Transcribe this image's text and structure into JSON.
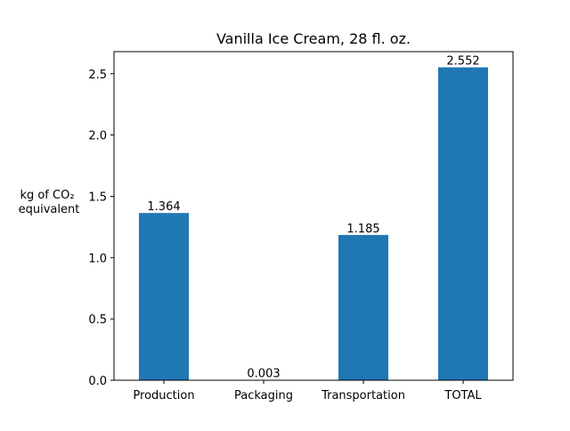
{
  "chart_data": {
    "type": "bar",
    "title": "Vanilla Ice Cream, 28 fl. oz.",
    "xlabel": "",
    "ylabel_lines": [
      "kg of CO₂",
      "equivalent"
    ],
    "categories": [
      "Production",
      "Packaging",
      "Transportation",
      "TOTAL"
    ],
    "values": [
      1.364,
      0.003,
      1.185,
      2.552
    ],
    "data_labels": [
      "1.364",
      "0.003",
      "1.185",
      "2.552"
    ],
    "ylim": [
      0,
      2.68
    ],
    "yticks": [
      0.0,
      0.5,
      1.0,
      1.5,
      2.0,
      2.5
    ],
    "ytick_labels": [
      "0.0",
      "0.5",
      "1.0",
      "1.5",
      "2.0",
      "2.5"
    ],
    "bar_color": "#1f77b4",
    "grid": false,
    "legend": "none"
  }
}
